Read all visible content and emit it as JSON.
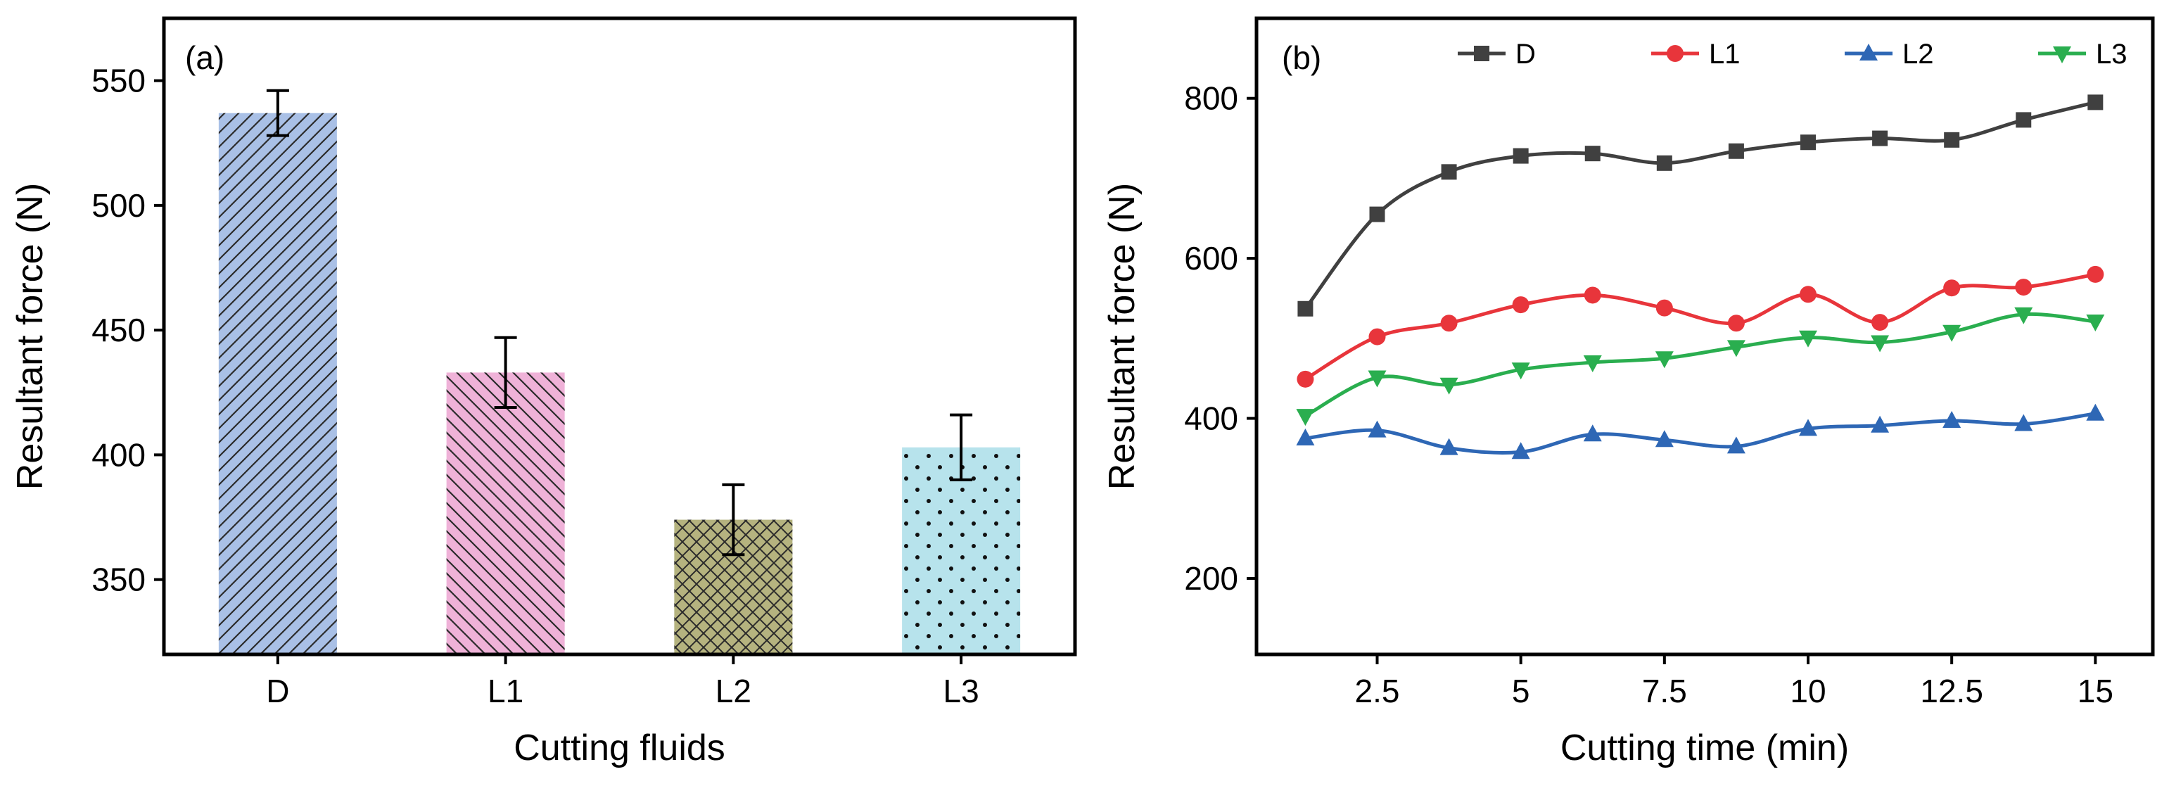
{
  "chart_data": [
    {
      "type": "bar",
      "panel_label": "(a)",
      "xlabel": "Cutting fluids",
      "ylabel": "Resultant force (N)",
      "categories": [
        "D",
        "L1",
        "L2",
        "L3"
      ],
      "values": [
        537,
        433,
        374,
        403
      ],
      "error": [
        9,
        14,
        14,
        13
      ],
      "ylim": [
        320,
        575
      ],
      "yticks": [
        350,
        400,
        450,
        500,
        550
      ],
      "colors": [
        "#a9c0e6",
        "#efb2d8",
        "#b5b37f",
        "#b7e3ec"
      ],
      "patterns": [
        "forward-hatch",
        "back-hatch",
        "crosshatch",
        "dots"
      ]
    },
    {
      "type": "line",
      "panel_label": "(b)",
      "xlabel": "Cutting time (min)",
      "ylabel": "Resultant force (N)",
      "x": [
        1.25,
        2.5,
        3.75,
        5,
        6.25,
        7.5,
        8.75,
        10,
        11.25,
        12.5,
        13.75,
        15
      ],
      "xlim": [
        0.4,
        16.0
      ],
      "ylim": [
        105,
        900
      ],
      "xticks": [
        2.5,
        5,
        7.5,
        10,
        12.5,
        15
      ],
      "xtick_labels": [
        "2.5",
        "5",
        "7.5",
        "10",
        "12.5",
        "15"
      ],
      "yticks": [
        200,
        400,
        600,
        800
      ],
      "legend_position": "top",
      "series": [
        {
          "name": "D",
          "color": "#404040",
          "marker": "square",
          "values": [
            537,
            655,
            708,
            728,
            731,
            719,
            734,
            745,
            750,
            748,
            773,
            795
          ]
        },
        {
          "name": "L1",
          "color": "#e8353b",
          "marker": "circle",
          "values": [
            449,
            502,
            519,
            542,
            554,
            538,
            519,
            555,
            520,
            563,
            564,
            580
          ]
        },
        {
          "name": "L2",
          "color": "#2e67b5",
          "marker": "triangle-up",
          "values": [
            375,
            385,
            363,
            358,
            380,
            373,
            365,
            387,
            391,
            397,
            393,
            406
          ]
        },
        {
          "name": "L3",
          "color": "#2aae4f",
          "marker": "triangle-down",
          "values": [
            403,
            451,
            442,
            461,
            470,
            475,
            489,
            501,
            495,
            508,
            530,
            521
          ]
        }
      ]
    }
  ]
}
